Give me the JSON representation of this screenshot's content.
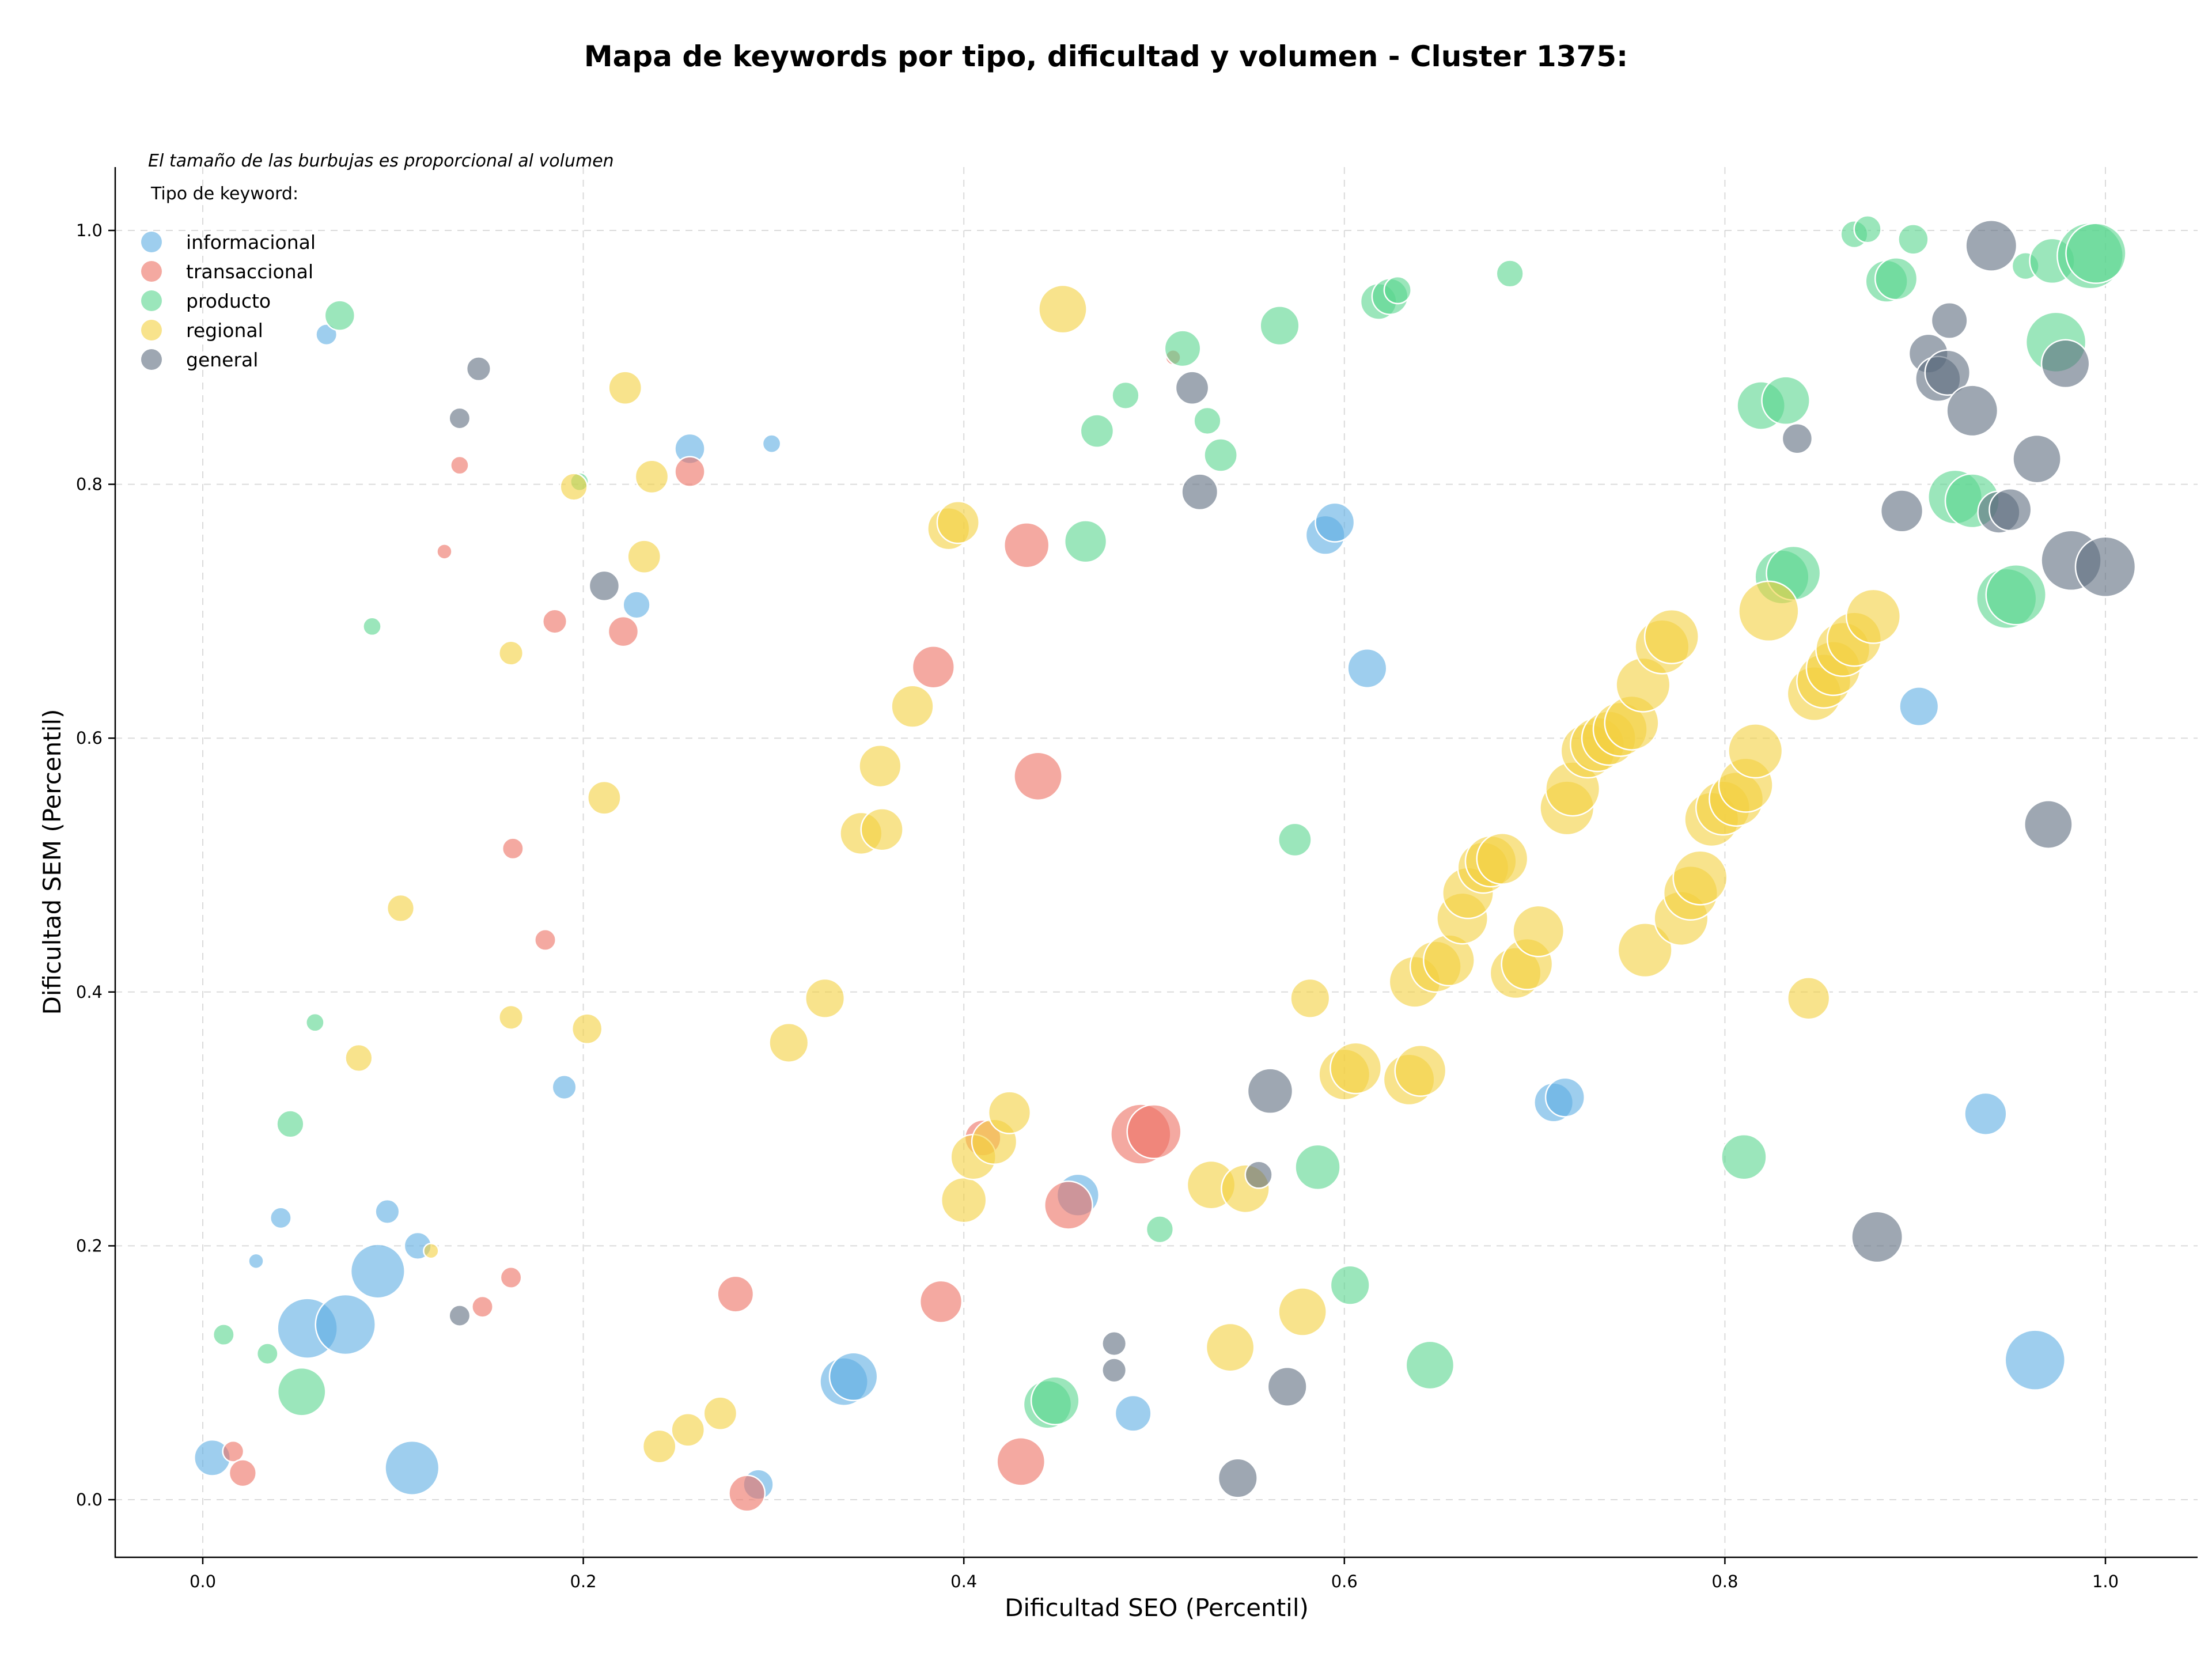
{
  "chart_data": {
    "type": "scatter",
    "title": "Mapa de keywords por tipo, dificultad y volumen - Cluster 1375:",
    "xlabel": "Dificultad SEO (Percentil)",
    "ylabel": "Dificultad SEM (Percentil)",
    "note": "El tamaño de las burbujas es proporcional al volumen",
    "xlim": [
      -0.045,
      1.05
    ],
    "ylim": [
      -0.045,
      1.05
    ],
    "xticks": [
      "0.0",
      "0.2",
      "0.4",
      "0.6",
      "0.8",
      "1.0"
    ],
    "yticks": [
      "0.0",
      "0.2",
      "0.4",
      "0.6",
      "0.8",
      "1.0"
    ],
    "grid": true,
    "legend": {
      "title": "Tipo de keyword:",
      "placement": "top-left"
    },
    "series": [
      {
        "name": "informacional",
        "color": "#5DADE2",
        "points": [
          [
            0.005,
            0.033,
            12
          ],
          [
            0.055,
            0.135,
            20
          ],
          [
            0.075,
            0.138,
            20
          ],
          [
            0.092,
            0.18,
            18
          ],
          [
            0.11,
            0.025,
            18
          ],
          [
            0.097,
            0.227,
            8
          ],
          [
            0.113,
            0.2,
            9
          ],
          [
            0.041,
            0.222,
            7
          ],
          [
            0.028,
            0.188,
            5
          ],
          [
            0.065,
            0.918,
            7
          ],
          [
            0.19,
            0.325,
            8
          ],
          [
            0.228,
            0.705,
            9
          ],
          [
            0.256,
            0.828,
            10
          ],
          [
            0.299,
            0.832,
            6
          ],
          [
            0.292,
            0.012,
            10
          ],
          [
            0.337,
            0.093,
            16
          ],
          [
            0.342,
            0.097,
            16
          ],
          [
            0.46,
            0.24,
            14
          ],
          [
            0.489,
            0.068,
            12
          ],
          [
            0.59,
            0.76,
            13
          ],
          [
            0.595,
            0.77,
            13
          ],
          [
            0.612,
            0.655,
            13
          ],
          [
            0.71,
            0.313,
            13
          ],
          [
            0.716,
            0.317,
            13
          ],
          [
            0.902,
            0.625,
            13
          ],
          [
            0.937,
            0.304,
            14
          ],
          [
            0.963,
            0.11,
            20
          ]
        ]
      },
      {
        "name": "transaccional",
        "color": "#EC7063",
        "points": [
          [
            0.016,
            0.038,
            7
          ],
          [
            0.021,
            0.021,
            9
          ],
          [
            0.147,
            0.152,
            7
          ],
          [
            0.162,
            0.175,
            7
          ],
          [
            0.127,
            0.747,
            5
          ],
          [
            0.135,
            0.815,
            6
          ],
          [
            0.18,
            0.441,
            7
          ],
          [
            0.185,
            0.692,
            8
          ],
          [
            0.221,
            0.684,
            10
          ],
          [
            0.256,
            0.81,
            10
          ],
          [
            0.163,
            0.513,
            7
          ],
          [
            0.28,
            0.162,
            12
          ],
          [
            0.286,
            0.005,
            12
          ],
          [
            0.384,
            0.656,
            14
          ],
          [
            0.388,
            0.156,
            14
          ],
          [
            0.43,
            0.03,
            16
          ],
          [
            0.433,
            0.752,
            15
          ],
          [
            0.439,
            0.57,
            16
          ],
          [
            0.455,
            0.232,
            16
          ],
          [
            0.493,
            0.288,
            20
          ],
          [
            0.5,
            0.29,
            18
          ],
          [
            0.51,
            0.9,
            5
          ],
          [
            0.41,
            0.285,
            12
          ]
        ]
      },
      {
        "name": "producto",
        "color": "#58D68D",
        "points": [
          [
            0.011,
            0.13,
            7
          ],
          [
            0.034,
            0.115,
            7
          ],
          [
            0.052,
            0.085,
            16
          ],
          [
            0.046,
            0.296,
            9
          ],
          [
            0.059,
            0.376,
            6
          ],
          [
            0.089,
            0.688,
            6
          ],
          [
            0.072,
            0.933,
            10
          ],
          [
            0.198,
            0.802,
            6
          ],
          [
            0.444,
            0.075,
            16
          ],
          [
            0.448,
            0.078,
            16
          ],
          [
            0.464,
            0.755,
            14
          ],
          [
            0.47,
            0.842,
            11
          ],
          [
            0.485,
            0.87,
            9
          ],
          [
            0.503,
            0.213,
            9
          ],
          [
            0.515,
            0.907,
            12
          ],
          [
            0.528,
            0.85,
            9
          ],
          [
            0.535,
            0.823,
            11
          ],
          [
            0.566,
            0.925,
            13
          ],
          [
            0.574,
            0.52,
            11
          ],
          [
            0.586,
            0.262,
            15
          ],
          [
            0.603,
            0.169,
            13
          ],
          [
            0.618,
            0.944,
            12
          ],
          [
            0.624,
            0.948,
            12
          ],
          [
            0.628,
            0.953,
            9
          ],
          [
            0.645,
            0.106,
            16
          ],
          [
            0.687,
            0.966,
            9
          ],
          [
            0.81,
            0.27,
            15
          ],
          [
            0.819,
            0.862,
            16
          ],
          [
            0.832,
            0.866,
            16
          ],
          [
            0.83,
            0.727,
            18
          ],
          [
            0.836,
            0.73,
            18
          ],
          [
            0.868,
            0.997,
            9
          ],
          [
            0.875,
            1.001,
            9
          ],
          [
            0.885,
            0.96,
            14
          ],
          [
            0.89,
            0.962,
            14
          ],
          [
            0.899,
            0.993,
            10
          ],
          [
            0.921,
            0.79,
            18
          ],
          [
            0.93,
            0.787,
            18
          ],
          [
            0.948,
            0.71,
            20
          ],
          [
            0.953,
            0.713,
            20
          ],
          [
            0.958,
            0.972,
            9
          ],
          [
            0.972,
            0.976,
            15
          ],
          [
            0.974,
            0.912,
            20
          ],
          [
            0.992,
            0.98,
            22
          ],
          [
            0.995,
            0.982,
            20
          ]
        ]
      },
      {
        "name": "regional",
        "color": "#F4D03F",
        "points": [
          [
            0.12,
            0.196,
            5
          ],
          [
            0.082,
            0.348,
            9
          ],
          [
            0.104,
            0.466,
            9
          ],
          [
            0.162,
            0.38,
            8
          ],
          [
            0.162,
            0.667,
            8
          ],
          [
            0.195,
            0.798,
            9
          ],
          [
            0.202,
            0.371,
            10
          ],
          [
            0.211,
            0.553,
            11
          ],
          [
            0.222,
            0.876,
            11
          ],
          [
            0.232,
            0.743,
            11
          ],
          [
            0.236,
            0.806,
            11
          ],
          [
            0.24,
            0.042,
            11
          ],
          [
            0.255,
            0.055,
            11
          ],
          [
            0.272,
            0.068,
            11
          ],
          [
            0.308,
            0.36,
            13
          ],
          [
            0.327,
            0.395,
            13
          ],
          [
            0.346,
            0.525,
            14
          ],
          [
            0.356,
            0.578,
            14
          ],
          [
            0.357,
            0.528,
            14
          ],
          [
            0.373,
            0.625,
            14
          ],
          [
            0.392,
            0.765,
            14
          ],
          [
            0.397,
            0.77,
            14
          ],
          [
            0.4,
            0.236,
            15
          ],
          [
            0.405,
            0.27,
            15
          ],
          [
            0.416,
            0.282,
            15
          ],
          [
            0.424,
            0.305,
            14
          ],
          [
            0.452,
            0.938,
            16
          ],
          [
            0.53,
            0.248,
            16
          ],
          [
            0.54,
            0.12,
            16
          ],
          [
            0.548,
            0.245,
            16
          ],
          [
            0.578,
            0.148,
            16
          ],
          [
            0.582,
            0.395,
            13
          ],
          [
            0.6,
            0.335,
            17
          ],
          [
            0.606,
            0.34,
            17
          ],
          [
            0.634,
            0.331,
            17
          ],
          [
            0.64,
            0.338,
            17
          ],
          [
            0.637,
            0.408,
            17
          ],
          [
            0.648,
            0.42,
            17
          ],
          [
            0.655,
            0.425,
            17
          ],
          [
            0.662,
            0.458,
            17
          ],
          [
            0.665,
            0.478,
            17
          ],
          [
            0.673,
            0.498,
            17
          ],
          [
            0.677,
            0.503,
            17
          ],
          [
            0.683,
            0.505,
            17
          ],
          [
            0.69,
            0.415,
            17
          ],
          [
            0.696,
            0.422,
            17
          ],
          [
            0.702,
            0.448,
            17
          ],
          [
            0.717,
            0.545,
            18
          ],
          [
            0.72,
            0.56,
            18
          ],
          [
            0.728,
            0.59,
            18
          ],
          [
            0.733,
            0.595,
            18
          ],
          [
            0.739,
            0.6,
            18
          ],
          [
            0.745,
            0.607,
            18
          ],
          [
            0.751,
            0.612,
            18
          ],
          [
            0.757,
            0.642,
            18
          ],
          [
            0.758,
            0.433,
            18
          ],
          [
            0.767,
            0.672,
            18
          ],
          [
            0.772,
            0.68,
            18
          ],
          [
            0.777,
            0.458,
            18
          ],
          [
            0.782,
            0.478,
            18
          ],
          [
            0.787,
            0.49,
            18
          ],
          [
            0.793,
            0.536,
            18
          ],
          [
            0.799,
            0.545,
            18
          ],
          [
            0.806,
            0.552,
            18
          ],
          [
            0.811,
            0.563,
            18
          ],
          [
            0.816,
            0.59,
            18
          ],
          [
            0.823,
            0.7,
            20
          ],
          [
            0.844,
            0.395,
            14
          ],
          [
            0.847,
            0.635,
            18
          ],
          [
            0.852,
            0.645,
            18
          ],
          [
            0.857,
            0.655,
            18
          ],
          [
            0.862,
            0.67,
            18
          ],
          [
            0.868,
            0.678,
            18
          ],
          [
            0.878,
            0.696,
            18
          ]
        ]
      },
      {
        "name": "general",
        "color": "#5D6D7E",
        "points": [
          [
            0.135,
            0.145,
            7
          ],
          [
            0.135,
            0.852,
            7
          ],
          [
            0.145,
            0.891,
            8
          ],
          [
            0.211,
            0.72,
            10
          ],
          [
            0.479,
            0.123,
            8
          ],
          [
            0.479,
            0.102,
            8
          ],
          [
            0.52,
            0.876,
            11
          ],
          [
            0.524,
            0.794,
            12
          ],
          [
            0.544,
            0.017,
            13
          ],
          [
            0.561,
            0.322,
            15
          ],
          [
            0.57,
            0.089,
            13
          ],
          [
            0.555,
            0.256,
            9
          ],
          [
            0.838,
            0.836,
            10
          ],
          [
            0.88,
            0.207,
            17
          ],
          [
            0.893,
            0.779,
            14
          ],
          [
            0.907,
            0.903,
            13
          ],
          [
            0.918,
            0.929,
            12
          ],
          [
            0.912,
            0.883,
            15
          ],
          [
            0.917,
            0.888,
            15
          ],
          [
            0.93,
            0.858,
            17
          ],
          [
            0.94,
            0.988,
            17
          ],
          [
            0.944,
            0.778,
            14
          ],
          [
            0.95,
            0.78,
            14
          ],
          [
            0.964,
            0.82,
            16
          ],
          [
            0.97,
            0.532,
            16
          ],
          [
            0.979,
            0.895,
            16
          ],
          [
            0.982,
            0.74,
            20
          ],
          [
            1.0,
            0.735,
            20
          ]
        ]
      }
    ]
  }
}
